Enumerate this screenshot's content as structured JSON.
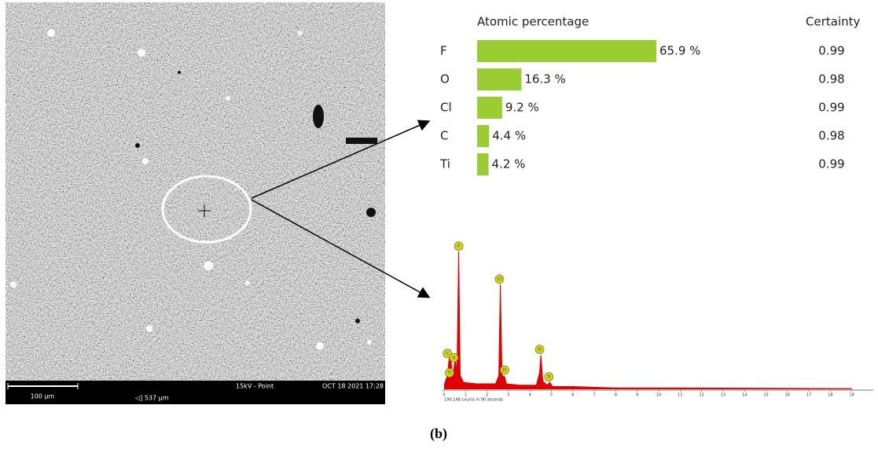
{
  "sem_image": {
    "scale_bar": "100 µm",
    "field_width": "◁] 537 µm",
    "mode": "15kV - Point",
    "timestamp": "OCT 18 2021 17:28"
  },
  "chart_data": [
    {
      "type": "hbar",
      "value_header": "Atomic percentage",
      "certainty_header": "Certainty",
      "categories": [
        "F",
        "O",
        "Cl",
        "C",
        "Ti"
      ],
      "values": [
        65.9,
        16.3,
        9.2,
        4.4,
        4.2
      ],
      "value_labels": [
        "65.9 %",
        "16.3 %",
        "9.2 %",
        "4.4 %",
        "4.2 %"
      ],
      "certainty": [
        0.99,
        0.98,
        0.99,
        0.98,
        0.99
      ],
      "color": "#9acd32"
    },
    {
      "type": "area",
      "note": "190,148 counts in 90 seconds",
      "color": "#e00000",
      "x": [
        0,
        0.15,
        0.28,
        0.4,
        0.52,
        0.6,
        0.68,
        0.75,
        0.9,
        1.5,
        2.4,
        2.55,
        2.62,
        2.7,
        2.82,
        2.9,
        3.5,
        4.3,
        4.45,
        4.51,
        4.6,
        4.8,
        4.93,
        5.05,
        6,
        8,
        10,
        19
      ],
      "values": [
        3,
        10,
        29,
        8,
        23,
        12,
        100,
        10,
        5,
        4,
        4,
        10,
        76,
        10,
        9,
        4,
        3,
        3,
        12,
        25,
        6,
        3,
        5,
        2,
        2,
        1,
        1,
        0.5
      ],
      "xlim": [
        0,
        20
      ],
      "ylim": [
        0,
        100
      ],
      "xticks": [
        0,
        1,
        2,
        3,
        4,
        5,
        6,
        7,
        8,
        9,
        10,
        11,
        12,
        13,
        14,
        15,
        16,
        17,
        18,
        19
      ],
      "annotations": [
        {
          "text": "F",
          "x": 0.68,
          "y": 104
        },
        {
          "text": "Cl",
          "x": 2.58,
          "y": 80
        },
        {
          "text": "C",
          "x": 0.15,
          "y": 26
        },
        {
          "text": "O",
          "x": 0.45,
          "y": 23
        },
        {
          "text": "Ti",
          "x": 0.25,
          "y": 12
        },
        {
          "text": "Cl",
          "x": 2.82,
          "y": 14
        },
        {
          "text": "Ti",
          "x": 4.45,
          "y": 29
        },
        {
          "text": "Ti",
          "x": 4.88,
          "y": 9
        }
      ]
    }
  ],
  "caption": "(b)"
}
